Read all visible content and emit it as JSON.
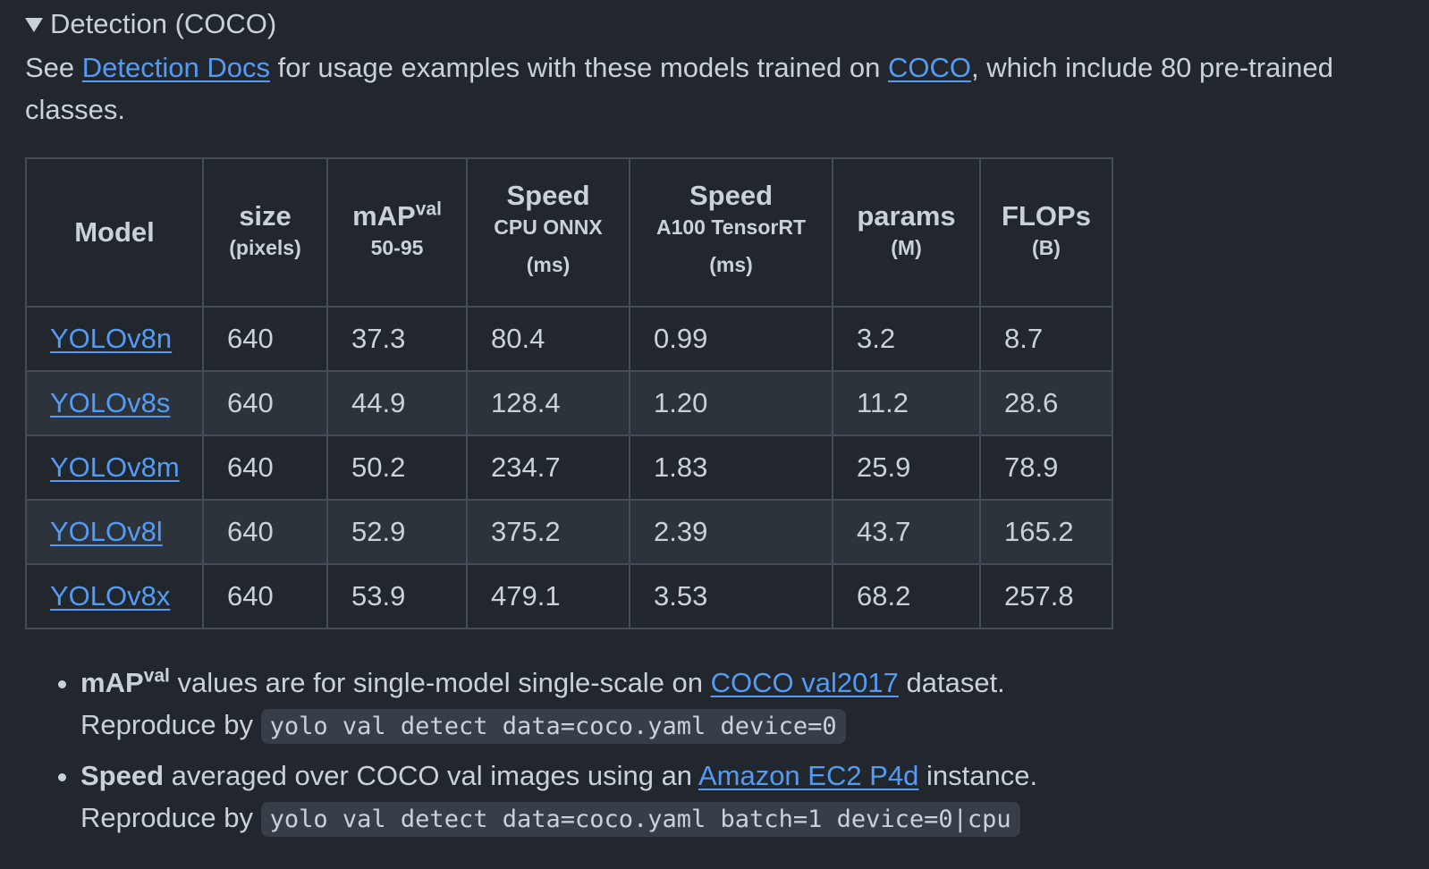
{
  "details": {
    "summary": "Detection (COCO)"
  },
  "intro": {
    "text_before": "See ",
    "docs_link": "Detection Docs",
    "text_middle": " for usage examples with these models trained on ",
    "coco_link": "COCO",
    "text_after": ", which include 80 pre-trained classes."
  },
  "table": {
    "headers": {
      "model": "Model",
      "size_main": "size",
      "size_sub": "(pixels)",
      "map_main": "mAP",
      "map_sup": "val",
      "map_sub": "50-95",
      "cpu_main": "Speed",
      "cpu_sub": "CPU ONNX",
      "cpu_unit": "(ms)",
      "gpu_main": "Speed",
      "gpu_sub": "A100 TensorRT",
      "gpu_unit": "(ms)",
      "params_main": "params",
      "params_sub": "(M)",
      "flops_main": "FLOPs",
      "flops_sub": "(B)"
    },
    "rows": [
      {
        "model": "YOLOv8n",
        "size": "640",
        "map": "37.3",
        "cpu": "80.4",
        "gpu": "0.99",
        "params": "3.2",
        "flops": "8.7"
      },
      {
        "model": "YOLOv8s",
        "size": "640",
        "map": "44.9",
        "cpu": "128.4",
        "gpu": "1.20",
        "params": "11.2",
        "flops": "28.6"
      },
      {
        "model": "YOLOv8m",
        "size": "640",
        "map": "50.2",
        "cpu": "234.7",
        "gpu": "1.83",
        "params": "25.9",
        "flops": "78.9"
      },
      {
        "model": "YOLOv8l",
        "size": "640",
        "map": "52.9",
        "cpu": "375.2",
        "gpu": "2.39",
        "params": "43.7",
        "flops": "165.2"
      },
      {
        "model": "YOLOv8x",
        "size": "640",
        "map": "53.9",
        "cpu": "479.1",
        "gpu": "3.53",
        "params": "68.2",
        "flops": "257.8"
      }
    ]
  },
  "notes": [
    {
      "bold": "mAP",
      "bold_sup": "val",
      "text": " values are for single-model single-scale on ",
      "link": "COCO val2017",
      "text_after": " dataset.",
      "reproduce": "Reproduce by ",
      "code": "yolo val detect data=coco.yaml device=0"
    },
    {
      "bold": "Speed",
      "text": " averaged over COCO val images using an ",
      "link": "Amazon EC2 P4d",
      "text_after": " instance.",
      "reproduce": "Reproduce by ",
      "code": "yolo val detect data=coco.yaml batch=1 device=0|cpu"
    }
  ]
}
